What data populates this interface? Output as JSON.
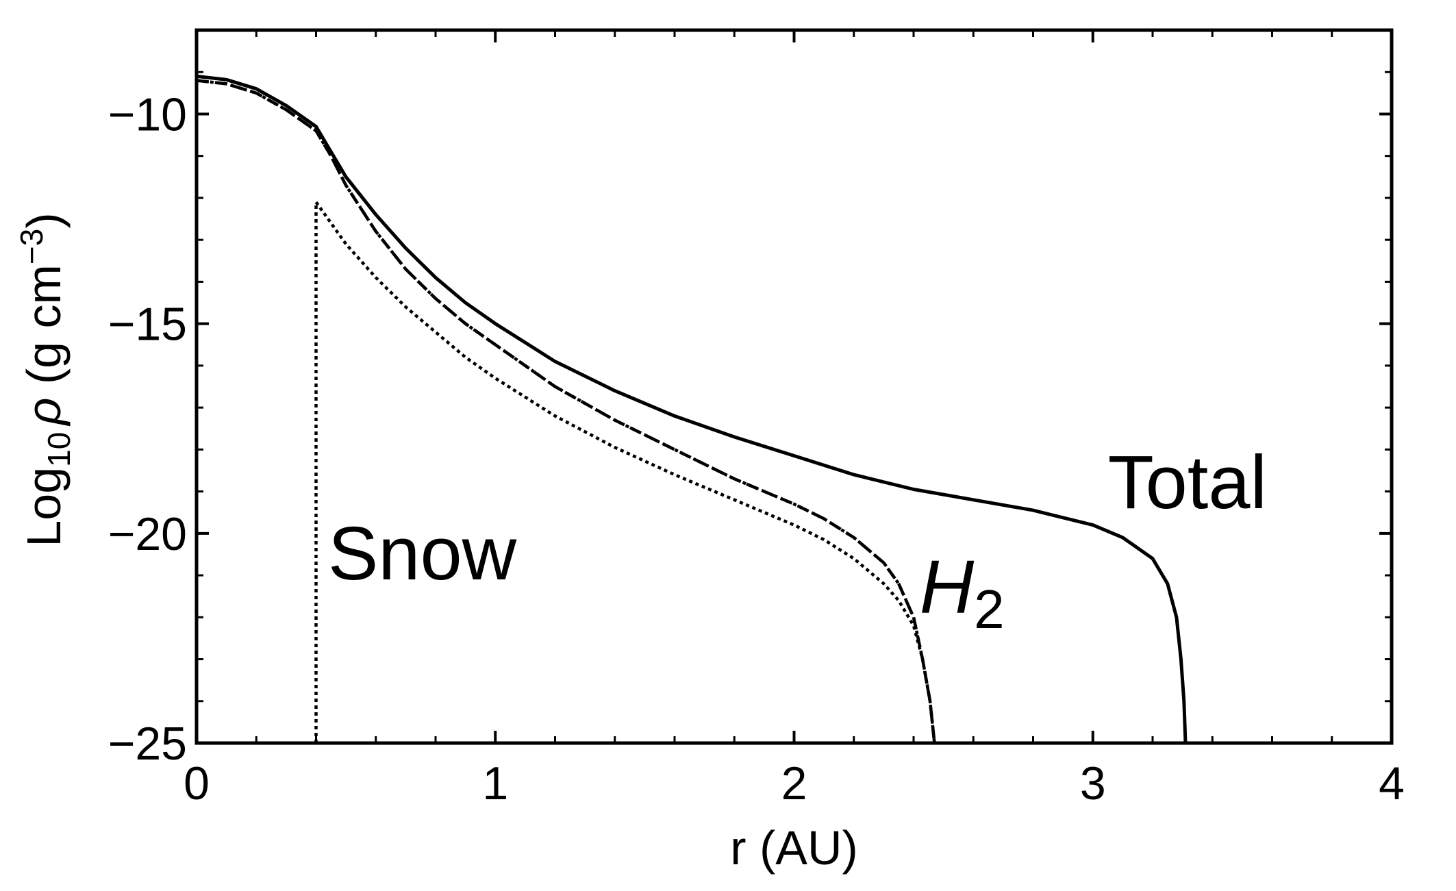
{
  "chart_data": {
    "type": "line",
    "xlabel": "r (AU)",
    "ylabel": {
      "prefix": "Log",
      "sub": "10",
      "rho": "ρ",
      "unit_open": " (g cm",
      "sup": "−3",
      "unit_close": ")"
    },
    "xlim": [
      0,
      4
    ],
    "ylim": [
      -25,
      -8
    ],
    "x_ticks": [
      0,
      1,
      2,
      3,
      4
    ],
    "x_tick_labels": [
      "0",
      "1",
      "2",
      "3",
      "4"
    ],
    "y_ticks": [
      -10,
      -15,
      -20,
      -25
    ],
    "y_tick_labels": [
      "−10",
      "−15",
      "−20",
      "−25"
    ],
    "grid": false,
    "legend": "none",
    "annotations": [
      {
        "text": "Total",
        "x": 3.05,
        "y": -19.4,
        "italic": false
      },
      {
        "text": "H",
        "sub": "2",
        "x": 2.42,
        "y": -21.9,
        "italic": true
      },
      {
        "text": "Snow",
        "x": 0.44,
        "y": -21.1,
        "italic": false
      }
    ],
    "series": [
      {
        "style": "solid",
        "color": "#000000",
        "points": [
          [
            0.0,
            -9.1
          ],
          [
            0.1,
            -9.18
          ],
          [
            0.2,
            -9.4
          ],
          [
            0.3,
            -9.8
          ],
          [
            0.4,
            -10.3
          ],
          [
            0.45,
            -10.9
          ],
          [
            0.5,
            -11.5
          ],
          [
            0.6,
            -12.4
          ],
          [
            0.7,
            -13.2
          ],
          [
            0.8,
            -13.9
          ],
          [
            0.9,
            -14.5
          ],
          [
            1.0,
            -15.0
          ],
          [
            1.2,
            -15.9
          ],
          [
            1.4,
            -16.6
          ],
          [
            1.6,
            -17.2
          ],
          [
            1.8,
            -17.7
          ],
          [
            2.0,
            -18.15
          ],
          [
            2.2,
            -18.6
          ],
          [
            2.4,
            -18.95
          ],
          [
            2.6,
            -19.2
          ],
          [
            2.8,
            -19.45
          ],
          [
            3.0,
            -19.8
          ],
          [
            3.1,
            -20.1
          ],
          [
            3.2,
            -20.6
          ],
          [
            3.25,
            -21.2
          ],
          [
            3.28,
            -22.0
          ],
          [
            3.295,
            -23.0
          ],
          [
            3.305,
            -24.0
          ],
          [
            3.31,
            -25.0
          ]
        ]
      },
      {
        "style": "dashed",
        "color": "#000000",
        "points": [
          [
            0.0,
            -9.2
          ],
          [
            0.1,
            -9.28
          ],
          [
            0.2,
            -9.5
          ],
          [
            0.3,
            -9.9
          ],
          [
            0.4,
            -10.4
          ],
          [
            0.45,
            -11.0
          ],
          [
            0.5,
            -11.7
          ],
          [
            0.6,
            -12.8
          ],
          [
            0.7,
            -13.7
          ],
          [
            0.8,
            -14.4
          ],
          [
            0.9,
            -15.0
          ],
          [
            1.0,
            -15.5
          ],
          [
            1.2,
            -16.5
          ],
          [
            1.4,
            -17.3
          ],
          [
            1.6,
            -18.0
          ],
          [
            1.8,
            -18.7
          ],
          [
            2.0,
            -19.3
          ],
          [
            2.1,
            -19.65
          ],
          [
            2.2,
            -20.1
          ],
          [
            2.3,
            -20.7
          ],
          [
            2.35,
            -21.2
          ],
          [
            2.4,
            -22.0
          ],
          [
            2.43,
            -23.0
          ],
          [
            2.455,
            -24.0
          ],
          [
            2.47,
            -25.0
          ]
        ]
      },
      {
        "style": "dotted",
        "color": "#000000",
        "points": [
          [
            0.0,
            -9.2
          ],
          [
            0.1,
            -9.28
          ],
          [
            0.2,
            -9.5
          ],
          [
            0.3,
            -9.9
          ],
          [
            0.4,
            -10.4
          ],
          [
            0.45,
            -11.0
          ],
          [
            0.5,
            -11.7
          ],
          [
            0.6,
            -12.8
          ],
          [
            0.7,
            -13.7
          ],
          [
            0.8,
            -14.4
          ],
          [
            0.9,
            -15.0
          ],
          [
            1.0,
            -15.5
          ],
          [
            1.2,
            -16.5
          ],
          [
            1.4,
            -17.3
          ],
          [
            1.6,
            -18.0
          ],
          [
            1.8,
            -18.7
          ],
          [
            2.0,
            -19.3
          ],
          [
            2.1,
            -19.65
          ],
          [
            2.2,
            -20.1
          ],
          [
            2.3,
            -20.7
          ],
          [
            2.35,
            -21.2
          ],
          [
            2.4,
            -22.0
          ],
          [
            2.43,
            -23.0
          ],
          [
            2.455,
            -24.0
          ],
          [
            2.47,
            -25.0
          ]
        ]
      },
      {
        "style": "dotted",
        "color": "#000000",
        "points": [
          [
            0.4,
            -25.0
          ],
          [
            0.4,
            -12.1
          ],
          [
            0.45,
            -12.6
          ],
          [
            0.5,
            -13.1
          ],
          [
            0.6,
            -13.9
          ],
          [
            0.7,
            -14.6
          ],
          [
            0.8,
            -15.2
          ],
          [
            0.9,
            -15.8
          ],
          [
            1.0,
            -16.3
          ],
          [
            1.2,
            -17.2
          ],
          [
            1.4,
            -17.95
          ],
          [
            1.6,
            -18.6
          ],
          [
            1.8,
            -19.2
          ],
          [
            2.0,
            -19.8
          ],
          [
            2.1,
            -20.15
          ],
          [
            2.2,
            -20.6
          ],
          [
            2.3,
            -21.2
          ],
          [
            2.35,
            -21.6
          ],
          [
            2.4,
            -22.2
          ],
          [
            2.43,
            -23.0
          ],
          [
            2.455,
            -24.0
          ],
          [
            2.47,
            -25.0
          ]
        ]
      }
    ]
  }
}
